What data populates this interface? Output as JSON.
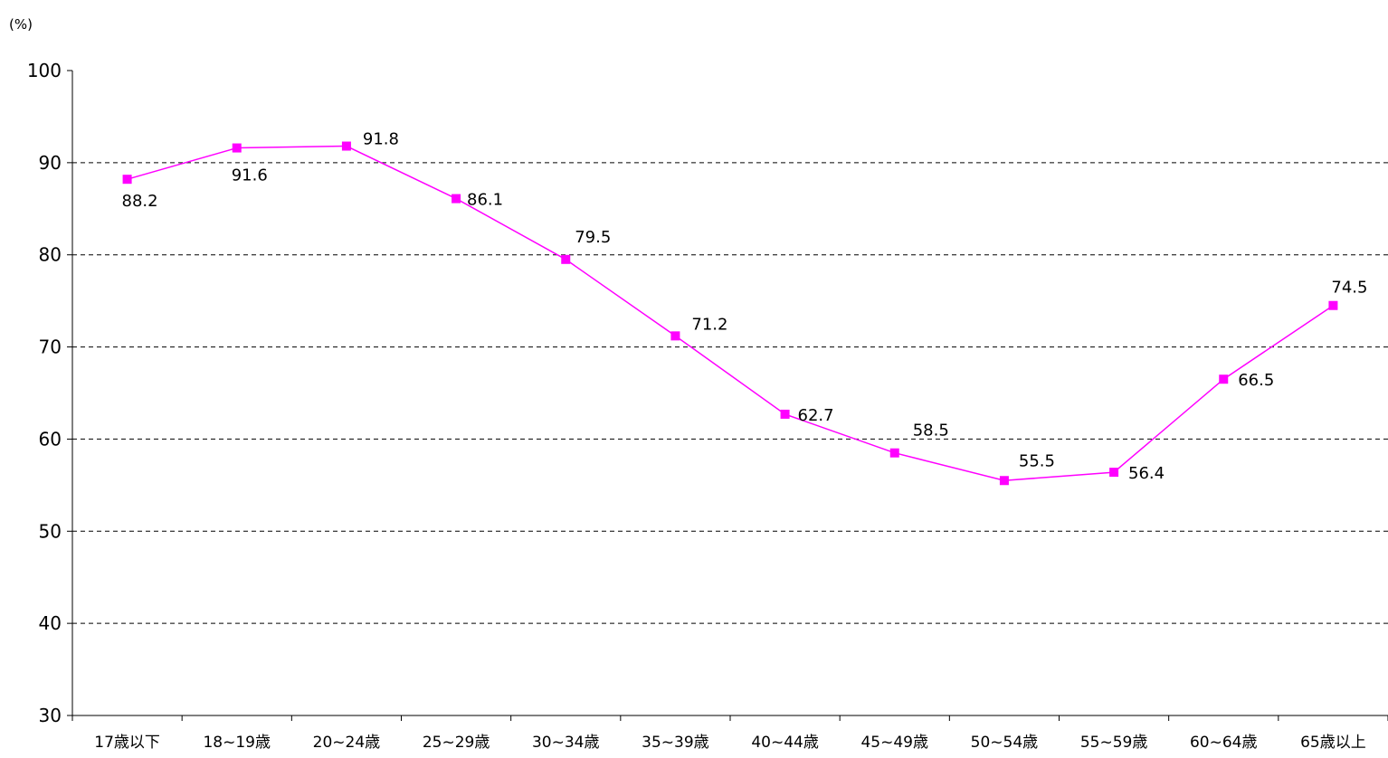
{
  "chart_data": {
    "type": "line",
    "title": "",
    "xlabel": "",
    "ylabel": "(%)",
    "ylim": [
      30,
      100
    ],
    "yticks": [
      30,
      40,
      50,
      60,
      70,
      80,
      90,
      100
    ],
    "grid": "horizontal-dashed",
    "categories": [
      "17歳以下",
      "18~19歳",
      "20~24歳",
      "25~29歳",
      "30~34歳",
      "35~39歳",
      "40~44歳",
      "45~49歳",
      "50~54歳",
      "55~59歳",
      "60~64歳",
      "65歳以上"
    ],
    "series": [
      {
        "values": [
          88.2,
          91.6,
          91.8,
          86.1,
          79.5,
          71.2,
          62.7,
          58.5,
          55.5,
          56.4,
          66.5,
          74.5
        ],
        "labels": [
          "88.2",
          "91.6",
          "91.8",
          "86.1",
          "79.5",
          "71.2",
          "62.7",
          "58.5",
          "55.5",
          "56.4",
          "66.5",
          "74.5"
        ],
        "color": "#ff00ff",
        "marker": "square"
      }
    ]
  }
}
